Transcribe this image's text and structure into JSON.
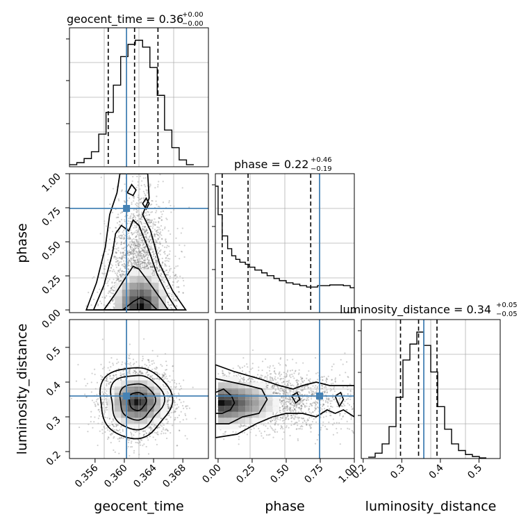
{
  "chart_data": {
    "type": "corner",
    "parameters": [
      "geocent_time",
      "phase",
      "luminosity_distance"
    ],
    "axis_labels": {
      "geocent_time": "geocent_time",
      "phase": "phase",
      "luminosity_distance": "luminosity_distance"
    },
    "ranges": {
      "geocent_time": [
        0.3525,
        0.3715
      ],
      "phase": [
        -0.02,
        1.0
      ],
      "luminosity_distance": [
        0.18,
        0.58
      ]
    },
    "ticks": {
      "geocent_time": [
        "0.356",
        "0.360",
        "0.364",
        "0.368"
      ],
      "phase_x": [
        "0.00",
        "0.25",
        "0.50",
        "0.75",
        "1.00"
      ],
      "phase_y": [
        "0.00",
        "0.25",
        "0.50",
        "0.75",
        "1.00"
      ],
      "luminosity_distance_x": [
        "0.2",
        "0.3",
        "0.4",
        "0.5"
      ],
      "luminosity_distance_y": [
        "0.2",
        "0.3",
        "0.4",
        "0.5"
      ]
    },
    "titles": {
      "geocent_time": {
        "name": "geocent_time",
        "median": "0.36",
        "plus": "+0.00",
        "minus": "−0.00"
      },
      "phase": {
        "name": "phase",
        "median": "0.22",
        "plus": "+0.46",
        "minus": "−0.19"
      },
      "luminosity_distance": {
        "name": "luminosity_distance",
        "median": "0.34",
        "plus": "+0.05",
        "minus": "−0.05"
      }
    },
    "truths": {
      "geocent_time": 0.3603,
      "phase": 0.745,
      "luminosity_distance": 0.36
    },
    "quantiles": {
      "geocent_time": [
        0.3578,
        0.3614,
        0.3646
      ],
      "phase": [
        0.03,
        0.22,
        0.68
      ],
      "luminosity_distance": [
        0.293,
        0.345,
        0.398
      ]
    },
    "histograms": {
      "geocent_time": {
        "edges": [
          0.3525,
          0.3535,
          0.3545,
          0.3555,
          0.3565,
          0.3575,
          0.3585,
          0.3595,
          0.3605,
          0.3615,
          0.3625,
          0.3635,
          0.3645,
          0.3655,
          0.3665,
          0.3675,
          0.3685,
          0.3695
        ],
        "counts": [
          3,
          6,
          12,
          22,
          48,
          80,
          120,
          162,
          180,
          186,
          176,
          146,
          105,
          54,
          28,
          10,
          3
        ]
      },
      "phase": {
        "edges": [
          -0.02,
          0.0,
          0.03,
          0.07,
          0.1,
          0.13,
          0.16,
          0.2,
          0.23,
          0.27,
          0.32,
          0.36,
          0.41,
          0.45,
          0.5,
          0.55,
          0.6,
          0.65,
          0.69,
          0.73,
          0.78,
          0.82,
          0.87,
          0.92,
          0.97,
          1.0
        ],
        "counts": [
          178,
          138,
          108,
          90,
          80,
          75,
          71,
          68,
          64,
          60,
          56,
          52,
          48,
          45,
          42,
          40,
          38,
          36,
          36,
          38,
          38,
          39,
          39,
          38,
          35
        ]
      },
      "luminosity_distance": {
        "edges": [
          0.2,
          0.22,
          0.24,
          0.26,
          0.28,
          0.3,
          0.32,
          0.34,
          0.36,
          0.38,
          0.4,
          0.42,
          0.44,
          0.46,
          0.48,
          0.5,
          0.52,
          0.54
        ],
        "counts": [
          2,
          8,
          22,
          48,
          92,
          148,
          172,
          190,
          170,
          130,
          78,
          44,
          22,
          12,
          6,
          3,
          1
        ]
      }
    }
  }
}
